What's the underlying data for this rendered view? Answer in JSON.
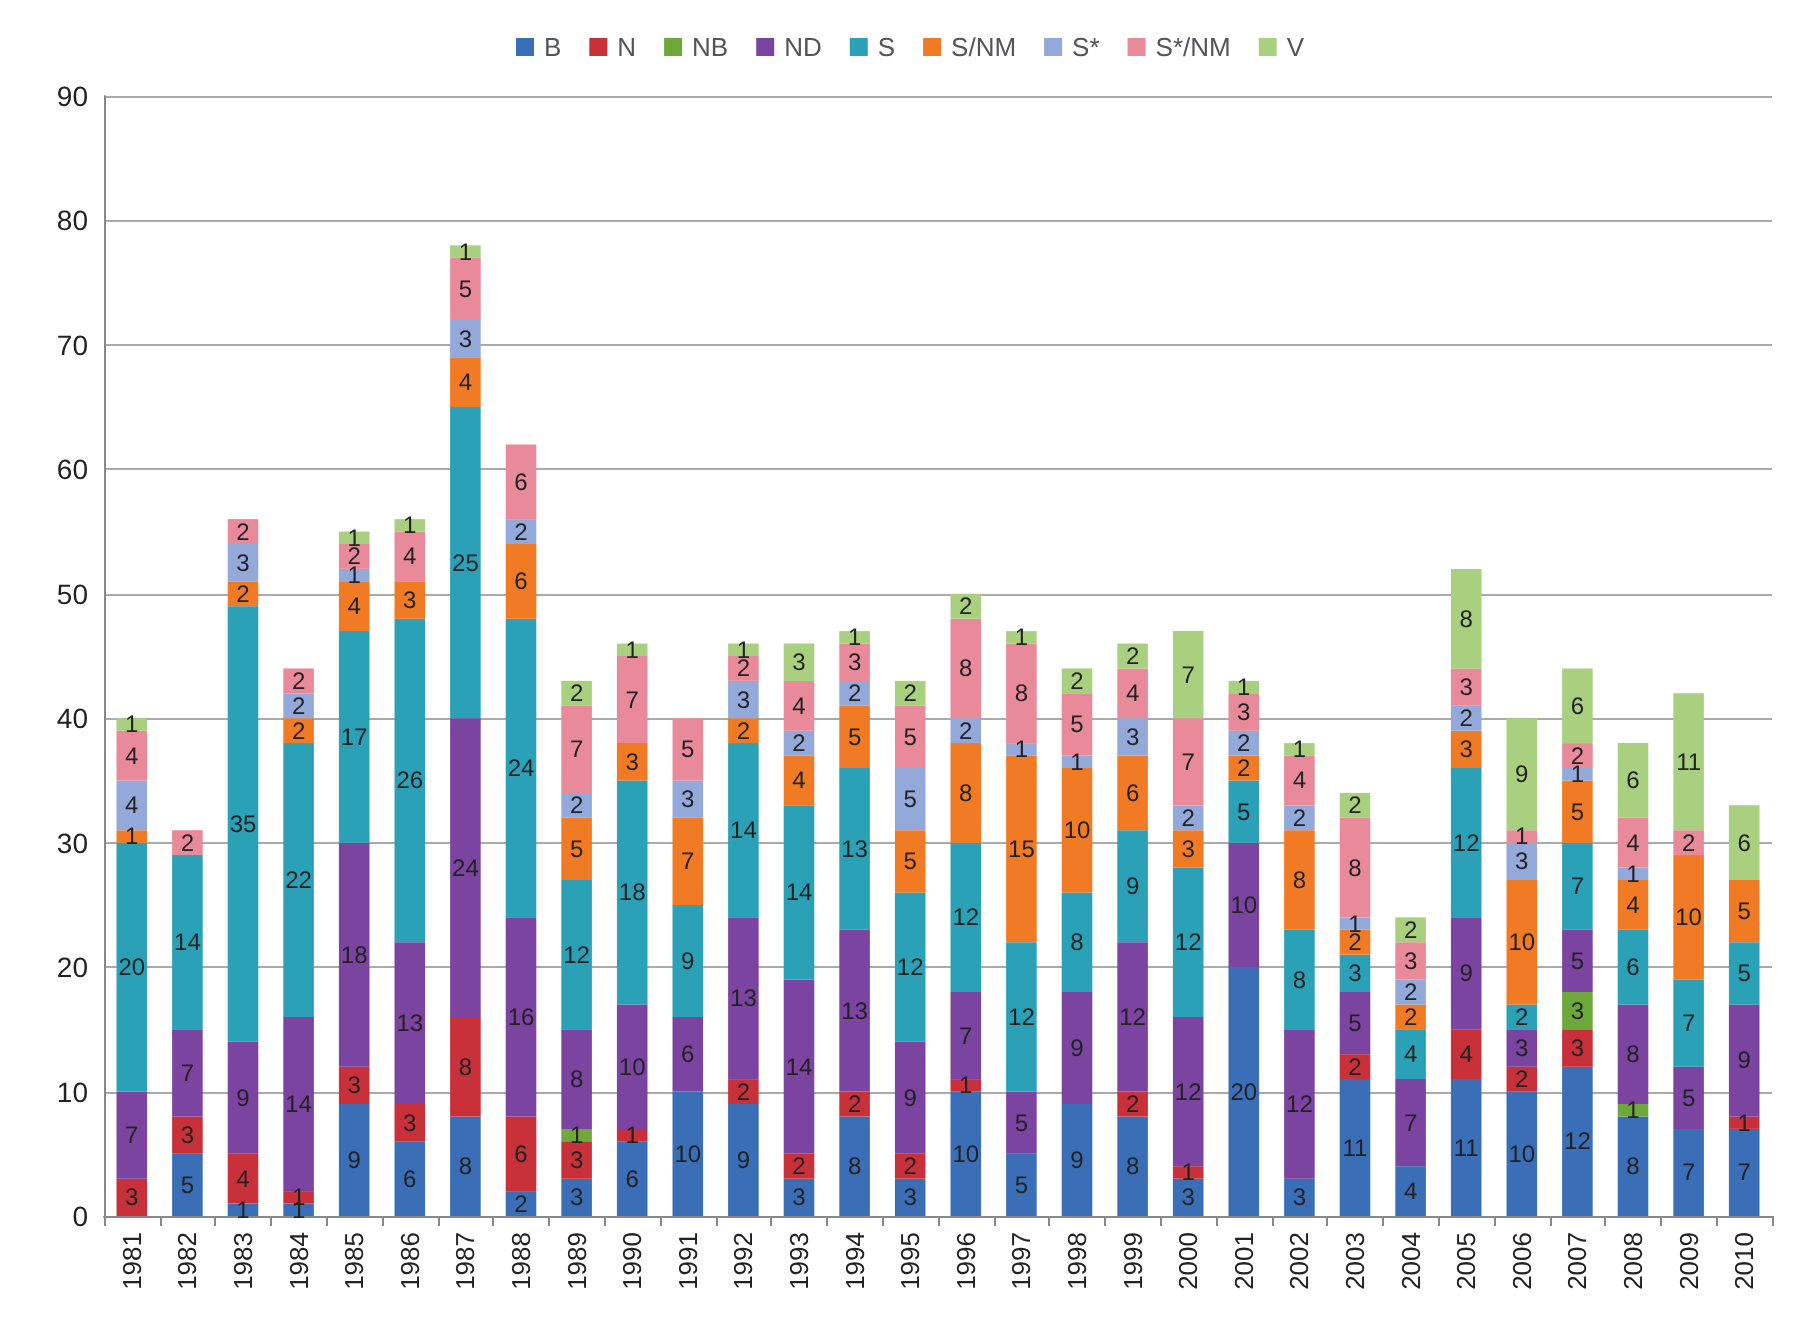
{
  "chart_data": {
    "type": "bar",
    "stacked": true,
    "data_labels": true,
    "legend": "top",
    "grid": "y",
    "ylim": [
      0,
      90
    ],
    "yticks": [
      0,
      10,
      20,
      30,
      40,
      50,
      60,
      70,
      80,
      90
    ],
    "categories": [
      "1981",
      "1982",
      "1983",
      "1984",
      "1985",
      "1986",
      "1987",
      "1988",
      "1989",
      "1990",
      "1991",
      "1992",
      "1993",
      "1994",
      "1995",
      "1996",
      "1997",
      "1998",
      "1999",
      "2000",
      "2001",
      "2002",
      "2003",
      "2004",
      "2005",
      "2006",
      "2007",
      "2008",
      "2009",
      "2010"
    ],
    "series": [
      {
        "name": "B",
        "color": "#3a6fb7",
        "values": [
          null,
          5,
          1,
          1,
          9,
          6,
          8,
          2,
          3,
          6,
          10,
          9,
          3,
          8,
          3,
          10,
          5,
          9,
          8,
          3,
          20,
          3,
          11,
          4,
          11,
          10,
          12,
          8,
          7,
          7
        ]
      },
      {
        "name": "N",
        "color": "#c8303a",
        "values": [
          3,
          3,
          4,
          1,
          3,
          3,
          8,
          6,
          3,
          1,
          null,
          2,
          2,
          2,
          2,
          1,
          null,
          null,
          2,
          1,
          null,
          null,
          2,
          null,
          4,
          2,
          3,
          null,
          null,
          1
        ]
      },
      {
        "name": "NB",
        "color": "#6fa83a",
        "values": [
          null,
          null,
          null,
          null,
          null,
          null,
          null,
          null,
          1,
          null,
          null,
          null,
          null,
          null,
          null,
          null,
          null,
          null,
          null,
          null,
          null,
          null,
          null,
          null,
          null,
          null,
          3,
          1,
          null,
          null
        ]
      },
      {
        "name": "ND",
        "color": "#7b44a0",
        "values": [
          7,
          7,
          9,
          14,
          18,
          13,
          24,
          16,
          8,
          10,
          6,
          13,
          14,
          13,
          9,
          7,
          5,
          9,
          12,
          12,
          10,
          12,
          5,
          7,
          9,
          3,
          5,
          8,
          5,
          9
        ]
      },
      {
        "name": "S",
        "color": "#2aa1b6",
        "values": [
          20,
          14,
          35,
          22,
          17,
          26,
          25,
          24,
          12,
          18,
          9,
          14,
          14,
          13,
          12,
          12,
          12,
          8,
          9,
          12,
          5,
          8,
          3,
          4,
          12,
          2,
          7,
          6,
          7,
          5
        ]
      },
      {
        "name": "S/NM",
        "color": "#f07b24",
        "values": [
          1,
          null,
          2,
          2,
          4,
          3,
          4,
          6,
          5,
          3,
          7,
          2,
          4,
          5,
          5,
          8,
          15,
          10,
          6,
          3,
          2,
          8,
          2,
          2,
          3,
          10,
          5,
          4,
          10,
          5
        ]
      },
      {
        "name": "S*",
        "color": "#93a9d9",
        "values": [
          4,
          null,
          3,
          2,
          1,
          null,
          3,
          2,
          2,
          null,
          3,
          3,
          2,
          2,
          5,
          2,
          1,
          1,
          3,
          2,
          2,
          2,
          1,
          2,
          2,
          3,
          1,
          1,
          null,
          null
        ]
      },
      {
        "name": "S*/NM",
        "color": "#e88a9a",
        "values": [
          4,
          2,
          2,
          2,
          2,
          4,
          5,
          6,
          7,
          7,
          5,
          2,
          4,
          3,
          5,
          8,
          8,
          5,
          4,
          7,
          3,
          4,
          8,
          3,
          3,
          1,
          2,
          4,
          2,
          null
        ]
      },
      {
        "name": "V",
        "color": "#a8d07f",
        "values": [
          1,
          null,
          null,
          null,
          1,
          1,
          1,
          null,
          2,
          1,
          null,
          1,
          3,
          1,
          2,
          2,
          1,
          2,
          2,
          7,
          1,
          1,
          2,
          2,
          8,
          9,
          6,
          6,
          11,
          6
        ]
      }
    ]
  }
}
